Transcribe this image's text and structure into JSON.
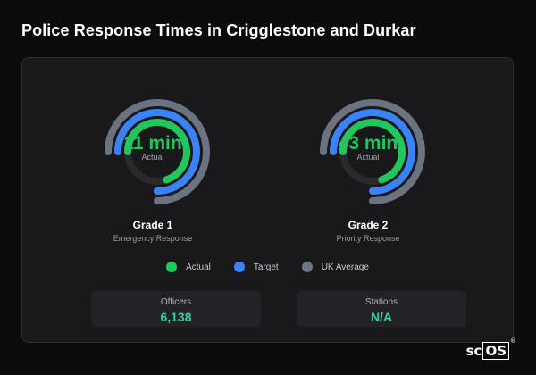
{
  "title": "Police Response Times in Crigglestone and Durkar",
  "colors": {
    "actual": "#22c55e",
    "target": "#3b82f6",
    "uk_average": "#6b7280",
    "track": "#2a2a2e"
  },
  "gauges": [
    {
      "value_text": "11 min",
      "sub_label": "Actual",
      "title": "Grade 1",
      "subtitle": "Emergency Response",
      "actual_fraction": 0.7,
      "target_fraction": 0.75,
      "uk_fraction": 0.75
    },
    {
      "value_text": "43 min",
      "sub_label": "Actual",
      "title": "Grade 2",
      "subtitle": "Priority Response",
      "actual_fraction": 0.7,
      "target_fraction": 0.75,
      "uk_fraction": 0.75
    }
  ],
  "legend": [
    {
      "label": "Actual",
      "color": "#22c55e"
    },
    {
      "label": "Target",
      "color": "#3b82f6"
    },
    {
      "label": "UK Average",
      "color": "#6b7280"
    }
  ],
  "stats": [
    {
      "label": "Officers",
      "value": "6,138"
    },
    {
      "label": "Stations",
      "value": "N/A"
    }
  ],
  "brand": {
    "prefix": "sc",
    "boxed": "OS",
    "reg": "®"
  }
}
